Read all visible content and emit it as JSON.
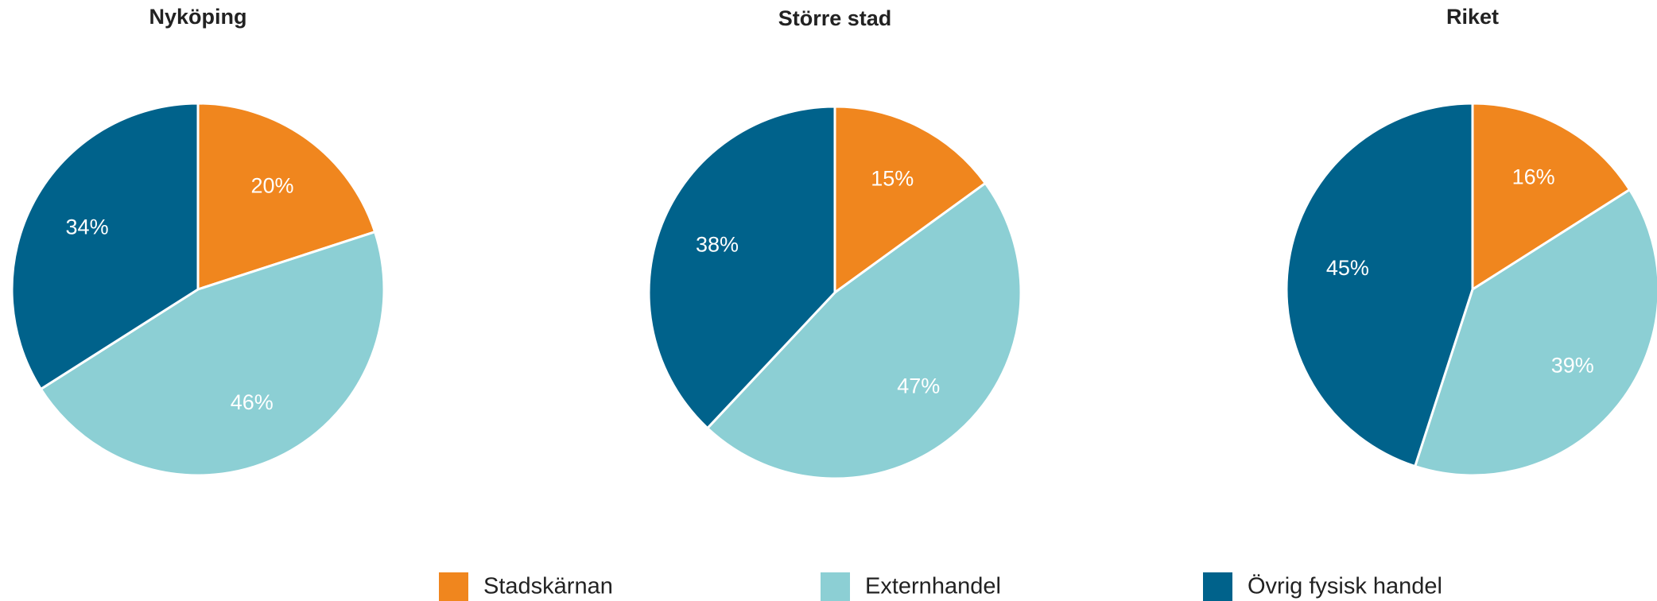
{
  "chart_data": [
    {
      "type": "pie",
      "title": "Nyköping",
      "categories": [
        "Stadskärnan",
        "Externhandel",
        "Övrig fysisk handel"
      ],
      "colors": [
        "#f0861e",
        "#8ccfd4",
        "#00628b"
      ],
      "values": [
        20,
        46,
        34
      ],
      "value_labels": [
        "20%",
        "46%",
        "34%"
      ]
    },
    {
      "type": "pie",
      "title": "Större stad",
      "categories": [
        "Stadskärnan",
        "Externhandel",
        "Övrig fysisk handel"
      ],
      "colors": [
        "#f0861e",
        "#8ccfd4",
        "#00628b"
      ],
      "values": [
        15,
        47,
        38
      ],
      "value_labels": [
        "15%",
        "47%",
        "38%"
      ]
    },
    {
      "type": "pie",
      "title": "Riket",
      "categories": [
        "Stadskärnan",
        "Externhandel",
        "Övrig fysisk handel"
      ],
      "colors": [
        "#f0861e",
        "#8ccfd4",
        "#00628b"
      ],
      "values": [
        16,
        39,
        45
      ],
      "value_labels": [
        "16%",
        "39%",
        "45%"
      ]
    }
  ]
}
